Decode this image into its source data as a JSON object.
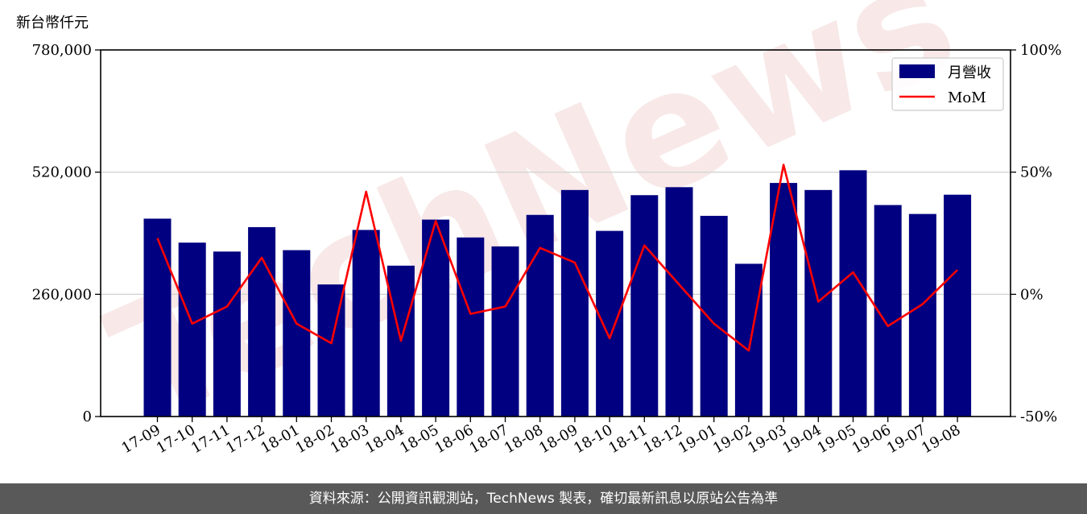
{
  "chart_data": {
    "type": "bar+line",
    "unit_label": "新台幣仟元",
    "categories": [
      "17-09",
      "17-10",
      "17-11",
      "17-12",
      "18-01",
      "18-02",
      "18-03",
      "18-04",
      "18-05",
      "18-06",
      "18-07",
      "18-08",
      "18-09",
      "18-10",
      "18-11",
      "18-12",
      "19-01",
      "19-02",
      "19-03",
      "19-04",
      "19-05",
      "19-06",
      "19-07",
      "19-08"
    ],
    "series": [
      {
        "name": "月營收",
        "type": "bar",
        "axis": "left",
        "color": "#000080",
        "values": [
          421000,
          370000,
          351000,
          403000,
          354000,
          281000,
          397000,
          321000,
          419000,
          381000,
          362000,
          429000,
          482000,
          395000,
          471000,
          488000,
          427000,
          325000,
          497000,
          482000,
          524000,
          450000,
          431000,
          472000
        ]
      },
      {
        "name": "MoM",
        "type": "line",
        "axis": "right",
        "color": "#ff0000",
        "values": [
          23,
          -12,
          -5,
          15,
          -12,
          -20,
          42,
          -19,
          30,
          -8,
          -5,
          19,
          13,
          -18,
          20,
          4,
          -12,
          -23,
          53,
          -3,
          9,
          -13,
          -4,
          10
        ]
      }
    ],
    "y_left": {
      "ticks": [
        "0",
        "260,000",
        "520,000",
        "780,000"
      ],
      "range": [
        0,
        780000
      ]
    },
    "y_right": {
      "ticks": [
        "-50%",
        "0%",
        "50%",
        "100%"
      ],
      "range": [
        -50,
        100
      ]
    },
    "grid": "horizontal",
    "legend_position": "top-right"
  },
  "watermark": "TechNews",
  "footer": {
    "text": "資料來源：公開資訊觀測站，TechNews 製表，確切最新訊息以原站公告為準"
  }
}
